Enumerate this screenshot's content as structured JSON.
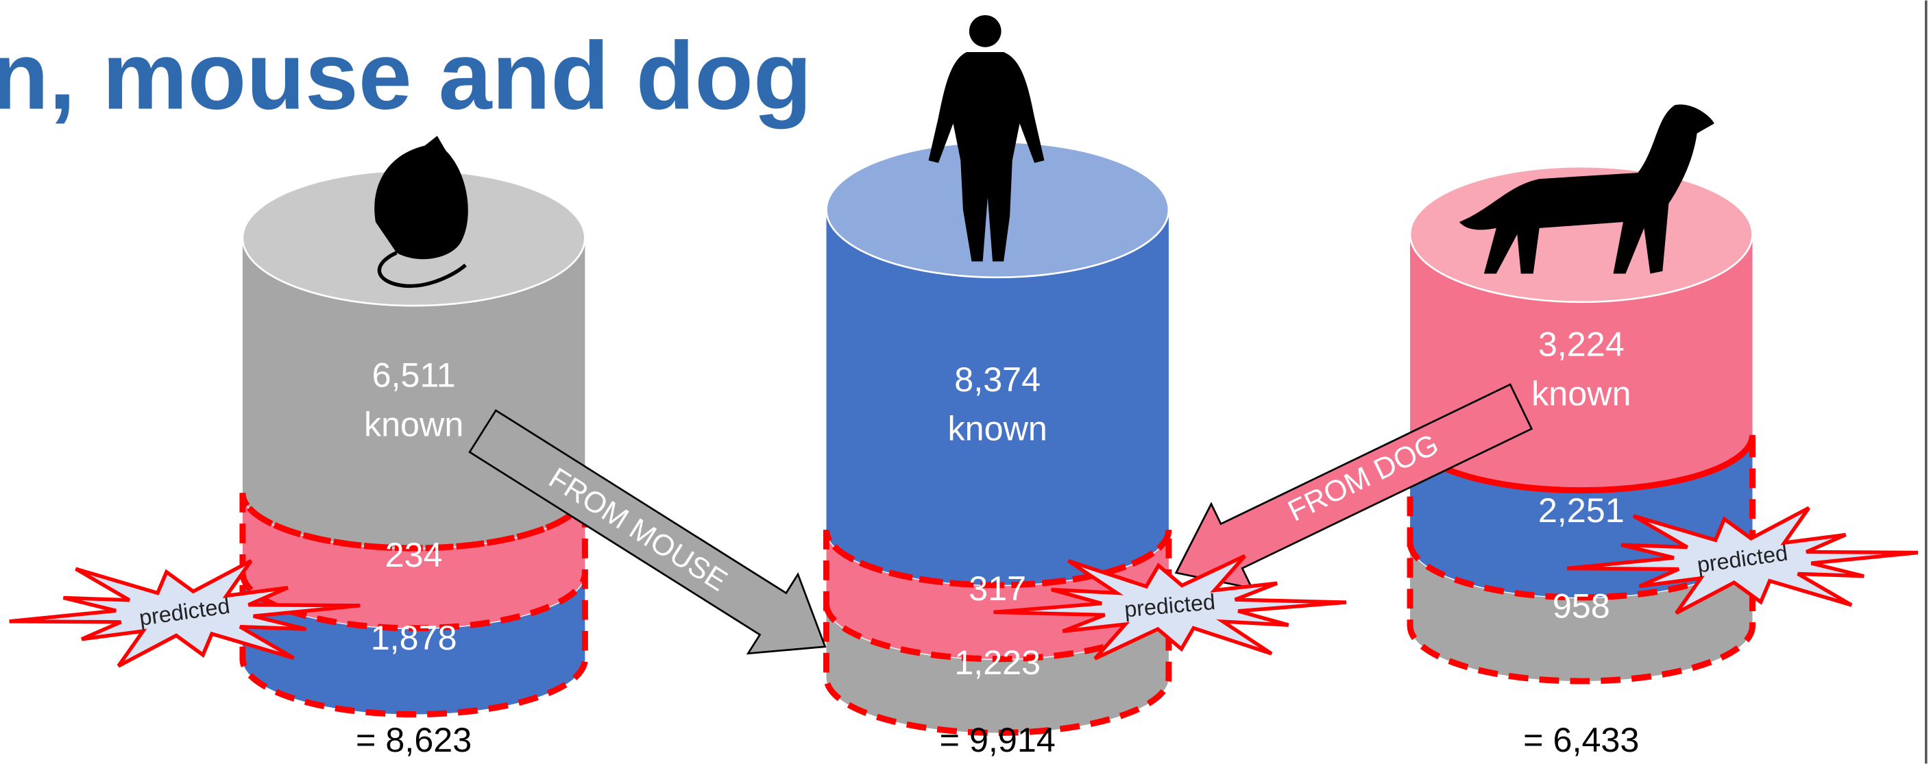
{
  "title": "n, mouse and dog",
  "cylinders": [
    {
      "known_value": "6,511",
      "known_label": "known",
      "segments": [
        "234",
        "1,878"
      ],
      "total": "= 8,623",
      "badge": "predicted"
    },
    {
      "known_value": "8,374",
      "known_label": "known",
      "segments": [
        "317",
        "1,223"
      ],
      "total": "= 9,914",
      "badge": "predicted"
    },
    {
      "known_value": "3,224",
      "known_label": "known",
      "segments": [
        "2,251",
        "958"
      ],
      "total": "= 6,433",
      "badge": "predicted"
    }
  ],
  "arrows": [
    {
      "label": "FROM MOUSE"
    },
    {
      "label": "FROM DOG"
    }
  ]
}
